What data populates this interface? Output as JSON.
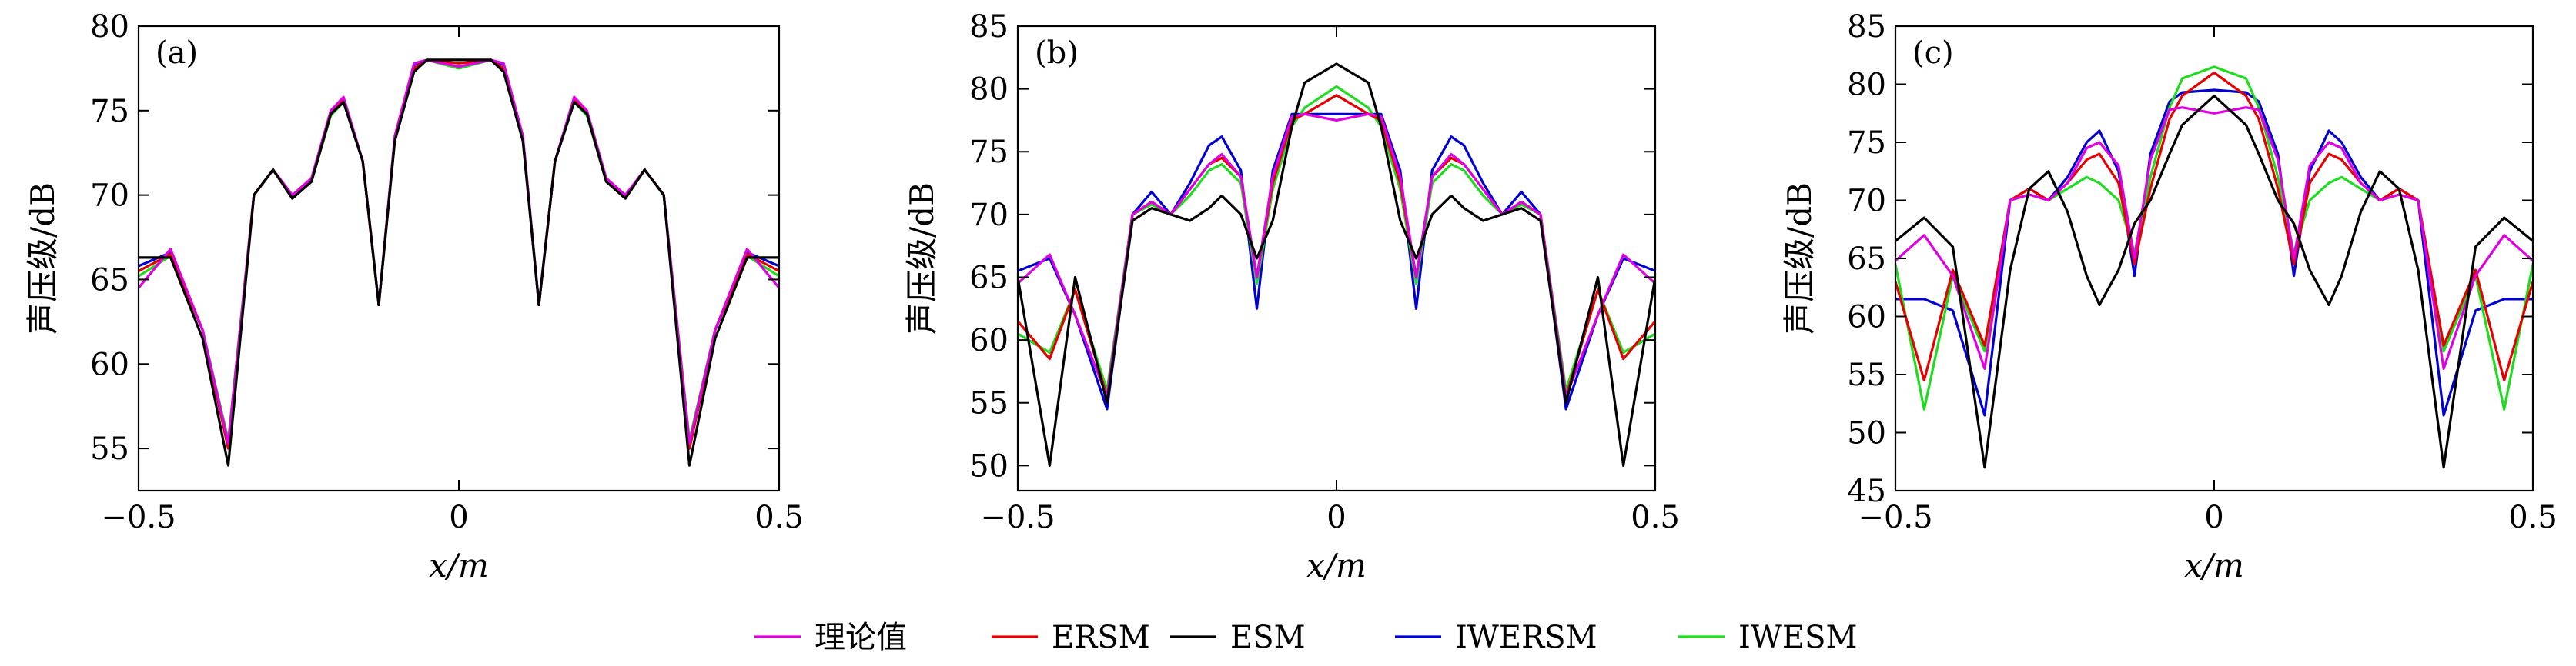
{
  "legend": [
    {
      "label": "理论值",
      "color": "#e100e1"
    },
    {
      "label": "ERSM",
      "color": "#e60000"
    },
    {
      "label": "ESM",
      "color": "#000000"
    },
    {
      "label": "IWERSM",
      "color": "#0000d2"
    },
    {
      "label": "IWESM",
      "color": "#1edc1e"
    }
  ],
  "chart_data": [
    {
      "type": "line",
      "panel_label": "(a)",
      "xlabel": "x/m",
      "ylabel": "声压级/dB",
      "xlim": [
        -0.5,
        0.5
      ],
      "ylim": [
        52.5,
        80
      ],
      "xticks": [
        "−0.5",
        "0",
        "0.5"
      ],
      "yticks": [
        "55",
        "60",
        "65",
        "70",
        "75",
        "80"
      ],
      "x": [
        -0.5,
        -0.45,
        -0.4,
        -0.36,
        -0.32,
        -0.29,
        -0.26,
        -0.23,
        -0.2,
        -0.18,
        -0.15,
        -0.125,
        -0.1,
        -0.07,
        -0.05,
        0,
        0.05,
        0.07,
        0.1,
        0.125,
        0.15,
        0.18,
        0.2,
        0.23,
        0.26,
        0.29,
        0.32,
        0.36,
        0.4,
        0.45,
        0.5
      ],
      "series": [
        {
          "name": "理论值",
          "values": [
            64.5,
            66.8,
            62,
            55.3,
            70,
            71.5,
            70,
            71,
            75,
            75.8,
            72,
            63.5,
            73.5,
            77.8,
            78,
            77.6,
            78,
            77.8,
            73.5,
            63.5,
            72,
            75.8,
            75,
            71,
            70,
            71.5,
            70,
            55.3,
            62,
            66.8,
            64.5
          ]
        },
        {
          "name": "ERSM",
          "values": [
            65.5,
            66.5,
            62,
            55,
            70,
            71.5,
            69.8,
            70.8,
            74.8,
            75.6,
            72,
            63.5,
            73.3,
            77.5,
            78,
            77.8,
            78,
            77.5,
            73.3,
            63.5,
            72,
            75.6,
            74.8,
            70.8,
            69.8,
            71.5,
            70,
            55,
            62,
            66.5,
            65.5
          ]
        },
        {
          "name": "ESM",
          "values": [
            66.3,
            66.3,
            61.5,
            54,
            70,
            71.5,
            69.8,
            70.8,
            74.8,
            75.5,
            72,
            63.5,
            73.2,
            77.3,
            78,
            78,
            78,
            77.3,
            73.2,
            63.5,
            72,
            75.5,
            74.8,
            70.8,
            69.8,
            71.5,
            70,
            54,
            61.5,
            66.3,
            66.3
          ]
        },
        {
          "name": "IWERSM",
          "values": [
            65.8,
            66.6,
            62,
            55,
            70,
            71.5,
            69.8,
            70.8,
            74.8,
            75.6,
            72,
            63.5,
            73.4,
            77.7,
            78,
            77.6,
            78,
            77.7,
            73.4,
            63.5,
            72,
            75.6,
            74.8,
            70.8,
            69.8,
            71.5,
            70,
            55,
            62,
            66.6,
            65.8
          ]
        },
        {
          "name": "IWESM",
          "values": [
            65.2,
            66.4,
            62,
            55.5,
            70,
            71.5,
            69.8,
            70.8,
            74.7,
            75.5,
            72,
            63.5,
            73.2,
            77.4,
            78,
            77.5,
            78,
            77.4,
            73.2,
            63.5,
            72,
            75.5,
            74.7,
            70.8,
            69.8,
            71.5,
            70,
            55.5,
            62,
            66.4,
            65.2
          ]
        }
      ]
    },
    {
      "type": "line",
      "panel_label": "(b)",
      "xlabel": "x/m",
      "ylabel": "声压级/dB",
      "xlim": [
        -0.5,
        0.5
      ],
      "ylim": [
        48,
        85
      ],
      "xticks": [
        "−0.5",
        "0",
        "0.5"
      ],
      "yticks": [
        "50",
        "55",
        "60",
        "65",
        "70",
        "75",
        "80",
        "85"
      ],
      "x": [
        -0.5,
        -0.45,
        -0.41,
        -0.36,
        -0.32,
        -0.29,
        -0.26,
        -0.23,
        -0.2,
        -0.18,
        -0.15,
        -0.125,
        -0.1,
        -0.07,
        -0.05,
        0,
        0.05,
        0.07,
        0.1,
        0.125,
        0.15,
        0.18,
        0.2,
        0.23,
        0.26,
        0.29,
        0.32,
        0.36,
        0.41,
        0.45,
        0.5
      ],
      "series": [
        {
          "name": "理论值",
          "values": [
            64.5,
            66.8,
            62,
            55.5,
            70,
            71,
            70,
            72,
            74,
            74.8,
            73,
            65,
            73,
            77.8,
            78,
            77.5,
            78,
            77.8,
            73,
            65,
            73,
            74.8,
            74,
            72,
            70,
            71,
            70,
            55.5,
            62,
            66.8,
            64.5
          ]
        },
        {
          "name": "ERSM",
          "values": [
            61.5,
            58.5,
            64,
            55.5,
            70,
            71,
            70,
            72,
            74,
            74.5,
            73,
            65,
            72.5,
            77.5,
            78,
            79.5,
            78,
            77.5,
            72.5,
            65,
            73,
            74.5,
            74,
            72,
            70,
            71,
            70,
            55.5,
            64,
            58.5,
            61.5
          ]
        },
        {
          "name": "ESM",
          "values": [
            65,
            50,
            65,
            55,
            69.5,
            70.5,
            70,
            69.5,
            70.5,
            71.5,
            70,
            66.5,
            69.5,
            77,
            80.5,
            82,
            80.5,
            77,
            69.5,
            66.5,
            70,
            71.5,
            70.5,
            69.5,
            70,
            70.5,
            69.5,
            55,
            65,
            50,
            65
          ]
        },
        {
          "name": "IWERSM",
          "values": [
            65.5,
            66.5,
            62,
            54.5,
            70,
            71.8,
            70,
            72.5,
            75.5,
            76.2,
            73.5,
            62.5,
            73.5,
            78,
            78,
            78,
            78,
            78,
            73.5,
            62.5,
            73.5,
            76.2,
            75.5,
            72.5,
            70,
            71.8,
            70,
            54.5,
            62,
            66.5,
            65.5
          ]
        },
        {
          "name": "IWESM",
          "values": [
            60.5,
            59,
            64,
            56,
            70,
            70.8,
            70,
            71.5,
            73.5,
            74,
            72.5,
            64.5,
            72,
            77,
            78.5,
            80.2,
            78.5,
            77,
            72,
            64.5,
            72.5,
            74,
            73.5,
            71.5,
            70,
            70.8,
            70,
            56,
            64,
            59,
            60.5
          ]
        }
      ]
    },
    {
      "type": "line",
      "panel_label": "(c)",
      "xlabel": "x/m",
      "ylabel": "声压级/dB",
      "xlim": [
        -0.5,
        0.5
      ],
      "ylim": [
        45,
        85
      ],
      "xticks": [
        "−0.5",
        "0",
        "0.5"
      ],
      "yticks": [
        "45",
        "50",
        "55",
        "60",
        "65",
        "70",
        "75",
        "80",
        "85"
      ],
      "x": [
        -0.5,
        -0.455,
        -0.41,
        -0.36,
        -0.32,
        -0.29,
        -0.26,
        -0.23,
        -0.2,
        -0.18,
        -0.15,
        -0.125,
        -0.1,
        -0.07,
        -0.05,
        0,
        0.05,
        0.07,
        0.1,
        0.125,
        0.15,
        0.18,
        0.2,
        0.23,
        0.26,
        0.29,
        0.32,
        0.36,
        0.41,
        0.455,
        0.5
      ],
      "series": [
        {
          "name": "理论值",
          "values": [
            64.8,
            67,
            63.5,
            55.5,
            70,
            70.5,
            70,
            71.5,
            74.5,
            75,
            73,
            65,
            73.5,
            77.8,
            78,
            77.5,
            78,
            77.8,
            73.5,
            65,
            73,
            75,
            74.5,
            71.5,
            70,
            70.5,
            70,
            55.5,
            63.5,
            67,
            64.8
          ]
        },
        {
          "name": "ERSM",
          "values": [
            63,
            54.5,
            64,
            57.5,
            70,
            71,
            70,
            71.5,
            73.5,
            74,
            71.5,
            64.5,
            71,
            77,
            79,
            81,
            79,
            77,
            71,
            64.5,
            71.5,
            74,
            73.5,
            71.5,
            70,
            71,
            70,
            57.5,
            64,
            54.5,
            63
          ]
        },
        {
          "name": "ESM",
          "values": [
            66.5,
            68.5,
            66,
            47,
            64,
            71,
            72.5,
            69,
            63.5,
            61,
            64,
            68,
            70,
            74,
            76.5,
            79,
            76.5,
            74,
            70,
            68,
            64,
            61,
            63.5,
            69,
            72.5,
            71,
            64,
            47,
            66,
            68.5,
            66.5
          ]
        },
        {
          "name": "IWERSM",
          "values": [
            61.5,
            61.5,
            60.5,
            51.5,
            70,
            71,
            70,
            72,
            75,
            76,
            72.5,
            63.5,
            74,
            78.5,
            79.3,
            79.5,
            79.3,
            78.5,
            74,
            63.5,
            72.5,
            76,
            75,
            72,
            70,
            71,
            70,
            51.5,
            60.5,
            61.5,
            61.5
          ]
        },
        {
          "name": "IWESM",
          "values": [
            64.5,
            52,
            63.5,
            57,
            70,
            70.5,
            70,
            71,
            72,
            71.5,
            70,
            65.5,
            72,
            78,
            80.5,
            81.5,
            80.5,
            78,
            72,
            65.5,
            70,
            71.5,
            72,
            71,
            70,
            70.5,
            70,
            57,
            63.5,
            52,
            64.5
          ]
        }
      ]
    }
  ]
}
